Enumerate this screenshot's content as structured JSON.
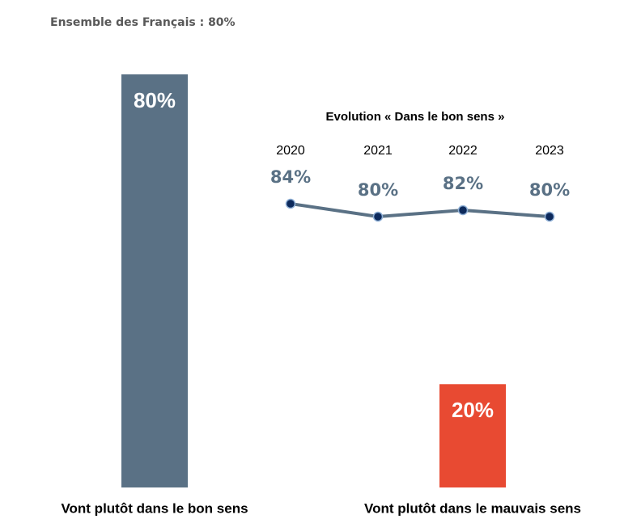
{
  "chart_data": [
    {
      "type": "bar",
      "title": "Ensemble des Français : 80%",
      "categories": [
        "Vont plutôt dans le bon sens",
        "Vont plutôt dans le mauvais sens"
      ],
      "values": [
        80,
        20
      ],
      "value_labels": [
        "80%",
        "20%"
      ],
      "colors": [
        "#5a7185",
        "#e84a32"
      ]
    },
    {
      "type": "line",
      "title": "Evolution « Dans le bon sens »",
      "categories": [
        "2020",
        "2021",
        "2022",
        "2023"
      ],
      "values": [
        84,
        80,
        82,
        80
      ],
      "value_labels": [
        "84%",
        "80%",
        "82%",
        "80%"
      ],
      "color": "#5a7185",
      "marker_color": "#0d2a5c"
    }
  ]
}
